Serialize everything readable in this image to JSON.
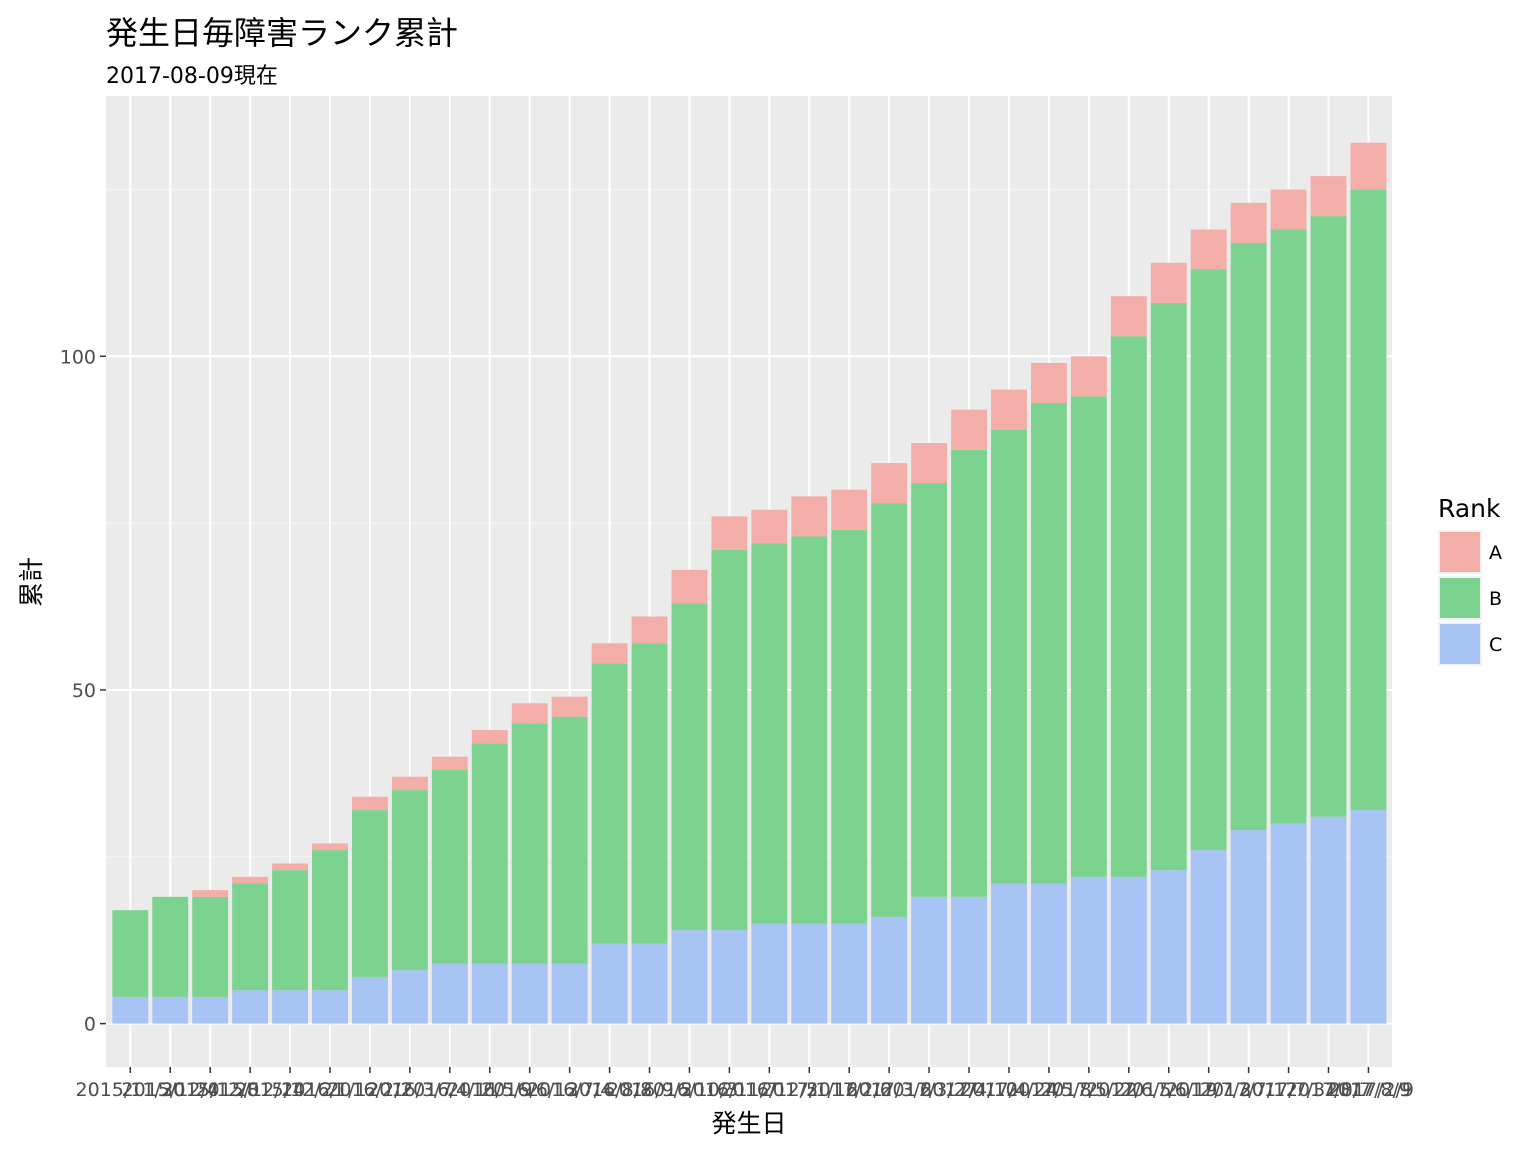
{
  "chart_data": {
    "type": "bar",
    "stacked": true,
    "title": "発生日毎障害ランク累計",
    "subtitle": "2017-08-09現在",
    "xlabel": "発生日",
    "ylabel": "累計",
    "ylim": [
      -6.5,
      139
    ],
    "yticks": [
      0,
      50,
      100
    ],
    "grid": true,
    "legend": {
      "title": "Rank",
      "position": "right"
    },
    "categories": [
      "2015/11/30",
      "2015/12/4",
      "2015/12/8",
      "2015/12/14",
      "2015/12/21",
      "2016/1/12",
      "2016/2/2",
      "2016/3/7",
      "2016/4/11",
      "2016/5/9",
      "2016/6/13",
      "2016/7/4",
      "2016/8/8",
      "2016/9/5",
      "2016/10/3",
      "2016/11/7",
      "2016/12/5",
      "2017/1/16",
      "2017/2/6",
      "2017/3/6",
      "2017/3/27",
      "2017/4/10",
      "2017/4/24",
      "2017/5/8",
      "2017/5/22",
      "2017/6/5",
      "2017/6/19",
      "2017/7/3",
      "2017/7/17",
      "2017/7/31",
      "2017/8/7",
      "2017/8/9"
    ],
    "visible_xtick_label": "2017/2/9",
    "series": [
      {
        "name": "C",
        "color": "#a7c4f5",
        "values": [
          4,
          4,
          4,
          5,
          5,
          5,
          7,
          8,
          9,
          9,
          9,
          9,
          12,
          12,
          14,
          14,
          15,
          15,
          15,
          16,
          19,
          19,
          21,
          21,
          22,
          22,
          23,
          26,
          29,
          30,
          31,
          32
        ]
      },
      {
        "name": "B",
        "color": "#7bd38f",
        "values": [
          13,
          15,
          15,
          16,
          18,
          21,
          25,
          27,
          29,
          33,
          36,
          37,
          42,
          45,
          49,
          57,
          57,
          58,
          59,
          62,
          62,
          67,
          68,
          72,
          72,
          81,
          85,
          87,
          88,
          89,
          90,
          93
        ]
      },
      {
        "name": "A",
        "color": "#f4aeaa",
        "values": [
          0,
          0,
          1,
          1,
          1,
          1,
          2,
          2,
          2,
          2,
          3,
          3,
          3,
          4,
          5,
          5,
          5,
          6,
          6,
          6,
          6,
          6,
          6,
          6,
          6,
          6,
          6,
          6,
          6,
          6,
          6,
          7
        ]
      }
    ]
  }
}
